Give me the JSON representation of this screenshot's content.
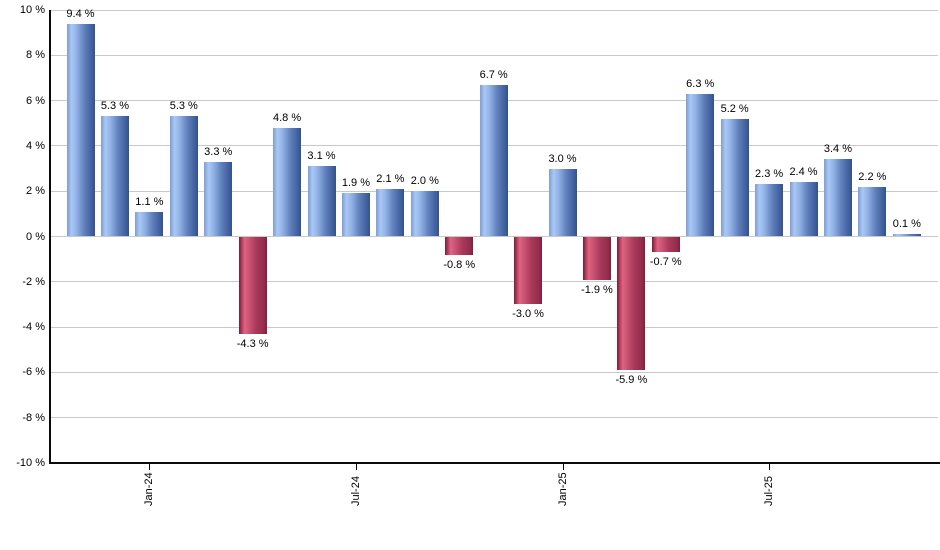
{
  "chart_data": {
    "type": "bar",
    "title": "",
    "xlabel": "",
    "ylabel": "",
    "ylim": [
      -10,
      10
    ],
    "grid": true,
    "values": [
      9.4,
      5.3,
      1.1,
      5.3,
      3.3,
      -4.3,
      4.8,
      3.1,
      1.9,
      2.1,
      2.0,
      -0.8,
      6.7,
      -3.0,
      3.0,
      -1.9,
      -5.9,
      -0.7,
      6.3,
      5.2,
      2.3,
      2.4,
      3.4,
      2.2,
      0.1
    ],
    "value_labels": [
      "9.4 %",
      "5.3 %",
      "1.1 %",
      "5.3 %",
      "3.3 %",
      "-4.3 %",
      "4.8 %",
      "3.1 %",
      "1.9 %",
      "2.1 %",
      "2.0 %",
      "-0.8 %",
      "6.7 %",
      "-3.0 %",
      "3.0 %",
      "-1.9 %",
      "-5.9 %",
      "-0.7 %",
      "6.3 %",
      "5.2 %",
      "2.3 %",
      "2.4 %",
      "3.4 %",
      "2.2 %",
      "0.1 %"
    ],
    "x_ticks": [
      {
        "bar_index": 2,
        "label": "Jan-24"
      },
      {
        "bar_index": 8,
        "label": "Jul-24"
      },
      {
        "bar_index": 14,
        "label": "Jan-25"
      },
      {
        "bar_index": 20,
        "label": "Jul-25"
      }
    ],
    "y_ticks": [
      {
        "value": 10,
        "label": "10 %"
      },
      {
        "value": 8,
        "label": "8 %"
      },
      {
        "value": 6,
        "label": "6 %"
      },
      {
        "value": 4,
        "label": "4 %"
      },
      {
        "value": 2,
        "label": "2 %"
      },
      {
        "value": 0,
        "label": "0 %"
      },
      {
        "value": -2,
        "label": "-2 %"
      },
      {
        "value": -4,
        "label": "-4 %"
      },
      {
        "value": -6,
        "label": "-6 %"
      },
      {
        "value": -8,
        "label": "-8 %"
      },
      {
        "value": -10,
        "label": "-10 %"
      }
    ],
    "legend": null,
    "colors": {
      "positive_gradient": [
        "#7e9cd2 0%",
        "#a9c8f5 16%",
        "#92b2e6 34%",
        "#6080bc 62%",
        "#3d5c9a 92%",
        "#36527e 100%"
      ],
      "negative_gradient": [
        "#7d1b37 0%",
        "#e06384 20%",
        "#d05876 32%",
        "#aa3a5c 60%",
        "#932c4c 90%",
        "#7c2040 100%"
      ],
      "gridline": "#c9c9c9",
      "axis": "#0a0a0a",
      "label_text": "#000000",
      "background": "#ffffff"
    }
  }
}
